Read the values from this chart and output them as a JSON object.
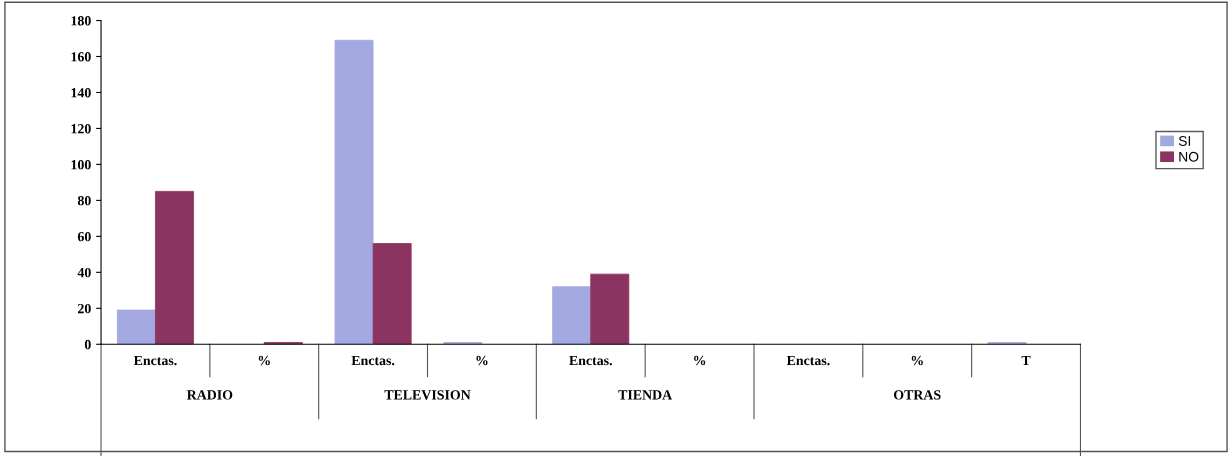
{
  "chart_data": {
    "type": "bar",
    "categories": [
      "Enctas.",
      "%",
      "Enctas.",
      "%",
      "Enctas.",
      "%",
      "Enctas.",
      "%",
      "T"
    ],
    "series": [
      {
        "name": "SI",
        "color": "#a3a9e0",
        "values": [
          19,
          null,
          169,
          1,
          32,
          null,
          null,
          null,
          1
        ]
      },
      {
        "name": "NO",
        "color": "#8c3461",
        "values": [
          85,
          1,
          56,
          null,
          39,
          null,
          null,
          null,
          null
        ]
      }
    ],
    "annotations": [
      "RADIO",
      "TELEVISION",
      "TIENDA",
      "OTRAS"
    ],
    "ylim": [
      0,
      180
    ],
    "yticks": [
      0,
      20,
      40,
      60,
      80,
      100,
      120,
      140,
      160,
      180
    ],
    "grid": false,
    "legend": "right"
  }
}
